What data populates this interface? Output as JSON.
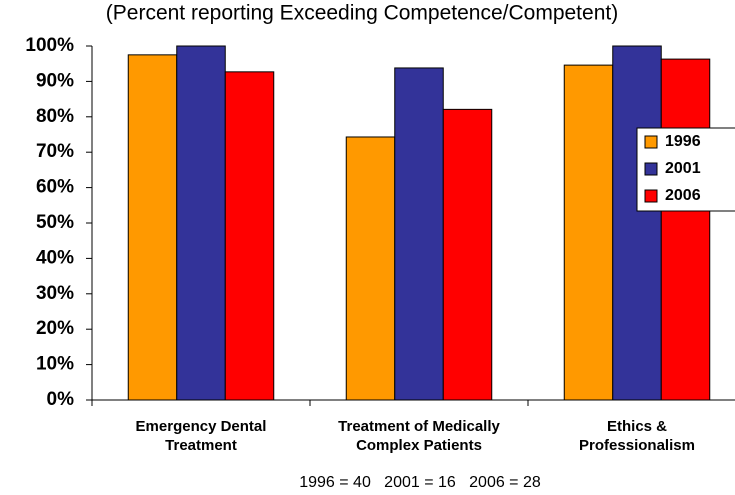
{
  "chart_data": {
    "type": "bar",
    "subtitle": "(Percent reporting Exceeding Competence/Competent)",
    "categories": [
      [
        "Emergency Dental",
        "Treatment"
      ],
      [
        "Treatment of Medically",
        "Complex Patients"
      ],
      [
        "Ethics &",
        "Professionalism"
      ]
    ],
    "series": [
      {
        "name": "1996",
        "color": "#ff9900",
        "values": [
          97.5,
          74.3,
          94.6
        ]
      },
      {
        "name": "2001",
        "color": "#333399",
        "values": [
          100,
          93.8,
          100
        ]
      },
      {
        "name": "2006",
        "color": "#ff0000",
        "values": [
          92.7,
          82.1,
          96.3
        ]
      }
    ],
    "ylim": [
      0,
      100
    ],
    "yticks": [
      {
        "value": 0,
        "label": "0%"
      },
      {
        "value": 10,
        "label": "10%"
      },
      {
        "value": 20,
        "label": "20%"
      },
      {
        "value": 30,
        "label": "30%"
      },
      {
        "value": 40,
        "label": "40%"
      },
      {
        "value": 50,
        "label": "50%"
      },
      {
        "value": 60,
        "label": "60%"
      },
      {
        "value": 70,
        "label": "70%"
      },
      {
        "value": 80,
        "label": "80%"
      },
      {
        "value": 90,
        "label": "90%"
      },
      {
        "value": 100,
        "label": "100%"
      }
    ],
    "grid": false,
    "legend": "right",
    "annotation": "1996 = 40   2001 = 16   2006 = 28"
  }
}
